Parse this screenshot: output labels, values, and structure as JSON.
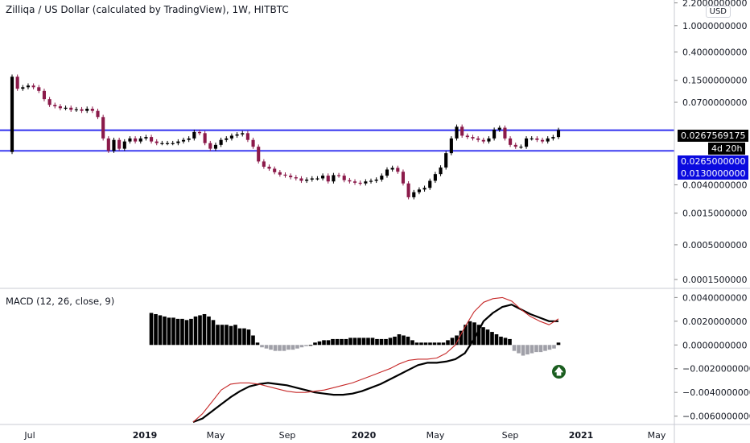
{
  "header": {
    "title": "Zilliqa / US Dollar (calculated by TradingView), 1W, HITBTC",
    "currency_button": "USD"
  },
  "macd": {
    "title": "MACD (12, 26, close, 9)"
  },
  "price_axis": {
    "ticks": [
      "2.2000000000",
      "1.0000000000",
      "0.4000000000",
      "0.1500000000",
      "0.0700000000",
      "0.0040000000",
      "0.0015000000",
      "0.0005000000",
      "0.0001500000"
    ],
    "last_price": "0.0267569175",
    "countdown": "4d 20h",
    "line_labels": [
      "0.0265000000",
      "0.0130000000"
    ]
  },
  "macd_axis": {
    "ticks": [
      "0.0040000000",
      "0.0020000000",
      "0.0000000000",
      "−0.0020000000",
      "−0.0040000000",
      "−0.0060000000"
    ]
  },
  "time_axis": {
    "labels": [
      "Jul",
      "2019",
      "May",
      "Sep",
      "2020",
      "May",
      "Sep",
      "2021",
      "May"
    ]
  },
  "colors": {
    "up": "#000000",
    "down": "#8b1a4a",
    "hline": "#3d3df0",
    "label_bg": "#0a0adf",
    "macd_line": "#000000",
    "signal_line": "#c62828",
    "hist_pos": "#000000",
    "hist_neg": "#a0a0a8",
    "alert": "#1b5e20"
  },
  "chart_data": [
    {
      "type": "candlestick",
      "title": "Zilliqa / US Dollar (calculated by TradingView), 1W, HITBTC",
      "scale": "log",
      "ylim": [
        0.00012,
        2.3
      ],
      "xlabels": [
        "Jul",
        "2019",
        "May",
        "Sep",
        "2020",
        "May",
        "Sep",
        "2021",
        "May"
      ],
      "horizontal_lines": [
        0.0265,
        0.013
      ],
      "last_price": 0.0267569175,
      "close": [
        0.17,
        0.112,
        0.118,
        0.125,
        0.118,
        0.104,
        0.078,
        0.064,
        0.061,
        0.057,
        0.058,
        0.054,
        0.055,
        0.052,
        0.056,
        0.052,
        0.042,
        0.02,
        0.013,
        0.019,
        0.014,
        0.018,
        0.02,
        0.018,
        0.02,
        0.021,
        0.018,
        0.017,
        0.017,
        0.017,
        0.017,
        0.018,
        0.019,
        0.02,
        0.025,
        0.024,
        0.017,
        0.014,
        0.016,
        0.019,
        0.02,
        0.022,
        0.023,
        0.024,
        0.019,
        0.015,
        0.009,
        0.0075,
        0.007,
        0.0062,
        0.0057,
        0.0055,
        0.0052,
        0.005,
        0.0046,
        0.0048,
        0.005,
        0.005,
        0.0055,
        0.0045,
        0.0056,
        0.0055,
        0.0047,
        0.0045,
        0.0043,
        0.0042,
        0.0045,
        0.0046,
        0.0048,
        0.0055,
        0.0068,
        0.0072,
        0.0063,
        0.0042,
        0.0026,
        0.0031,
        0.0034,
        0.0036,
        0.0046,
        0.0058,
        0.0073,
        0.012,
        0.02,
        0.03,
        0.022,
        0.021,
        0.02,
        0.019,
        0.018,
        0.02,
        0.027,
        0.029,
        0.02,
        0.016,
        0.015,
        0.015,
        0.02,
        0.02,
        0.019,
        0.018,
        0.02,
        0.021,
        0.0268
      ]
    },
    {
      "type": "line",
      "title": "MACD (12, 26, close, 9)",
      "ylim": [
        -0.0065,
        0.0045
      ],
      "series": [
        {
          "name": "MACD",
          "values": [
            -0.0068,
            -0.0062,
            -0.0056,
            -0.005,
            -0.0044,
            -0.0039,
            -0.0035,
            -0.0033,
            -0.0032,
            -0.0033,
            -0.0034,
            -0.0036,
            -0.0038,
            -0.004,
            -0.0041,
            -0.0042,
            -0.0042,
            -0.0041,
            -0.0039,
            -0.0036,
            -0.0033,
            -0.0029,
            -0.0025,
            -0.0021,
            -0.0017,
            -0.0015,
            -0.0015,
            -0.0014,
            -0.0012,
            -0.0007,
            0.0005,
            0.002,
            0.0027,
            0.0032,
            0.0034,
            0.003,
            0.0026,
            0.0023,
            0.002,
            0.002
          ]
        },
        {
          "name": "Signal",
          "values": [
            -0.0068,
            -0.0058,
            -0.0048,
            -0.0038,
            -0.0033,
            -0.0032,
            -0.0032,
            -0.0033,
            -0.0035,
            -0.0037,
            -0.0039,
            -0.004,
            -0.004,
            -0.0039,
            -0.0038,
            -0.0036,
            -0.0034,
            -0.0032,
            -0.0029,
            -0.0026,
            -0.0023,
            -0.002,
            -0.0016,
            -0.0013,
            -0.0012,
            -0.0012,
            -0.0011,
            -0.0007,
            0.0,
            0.0015,
            0.0028,
            0.0036,
            0.0039,
            0.004,
            0.0037,
            0.003,
            0.0024,
            0.002,
            0.0017,
            0.0022
          ]
        }
      ],
      "histogram": [
        0.0027,
        0.0026,
        0.0025,
        0.0024,
        0.0023,
        0.0023,
        0.0022,
        0.0022,
        0.0021,
        0.0022,
        0.0024,
        0.0025,
        0.0026,
        0.0024,
        0.0021,
        0.0017,
        0.0017,
        0.0017,
        0.0016,
        0.0017,
        0.0014,
        0.0014,
        0.0013,
        0.0008,
        0.0002,
        -0.0002,
        -0.0003,
        -0.0004,
        -0.0005,
        -0.0005,
        -0.0005,
        -0.0004,
        -0.0004,
        -0.0003,
        -0.0002,
        -0.0001,
        0.0,
        0.0002,
        0.0003,
        0.0004,
        0.0004,
        0.0005,
        0.0005,
        0.0005,
        0.0005,
        0.0006,
        0.0006,
        0.0006,
        0.0006,
        0.0006,
        0.0006,
        0.0005,
        0.0005,
        0.0005,
        0.0006,
        0.0007,
        0.0009,
        0.0008,
        0.0007,
        0.0004,
        0.0002,
        0.0002,
        0.0002,
        0.0002,
        0.0002,
        0.0002,
        0.0002,
        0.0004,
        0.0006,
        0.0008,
        0.0012,
        0.0017,
        0.002,
        0.0019,
        0.0017,
        0.0015,
        0.0013,
        0.0011,
        0.0009,
        0.0007,
        0.0006,
        0.0005,
        -0.0005,
        -0.0007,
        -0.0009,
        -0.0008,
        -0.0007,
        -0.0006,
        -0.0006,
        -0.0005,
        -0.0004,
        -0.0003,
        0.0002
      ]
    }
  ]
}
